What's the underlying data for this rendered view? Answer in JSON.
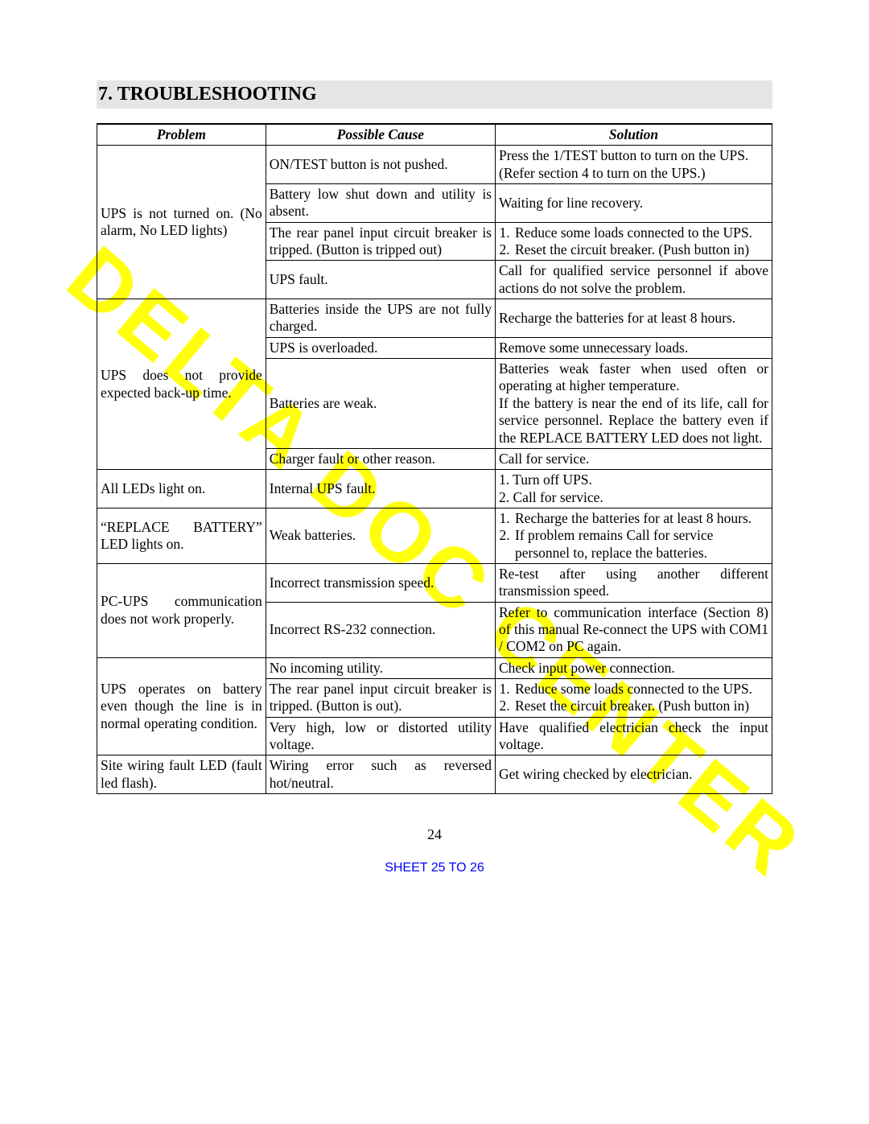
{
  "watermark": "DELTA DOC CENTER",
  "heading": "7. TROUBLESHOOTING",
  "columns": {
    "problem": "Problem",
    "cause": "Possible Cause",
    "solution": "Solution"
  },
  "rows": {
    "r1": {
      "problem": "UPS is not turned on. (No alarm, No LED lights)",
      "c1": "ON/TEST button is not pushed.",
      "s1": "Press the 1/TEST button to turn on the UPS.\n(Refer section 4 to turn on the UPS.)",
      "c2": "Battery low shut down and utility is absent.",
      "s2": "Waiting for line recovery.",
      "c3": "The rear panel input circuit breaker is tripped. (Button is tripped out)",
      "s3a": "Reduce some loads connected to the UPS.",
      "s3b": "Reset the circuit breaker. (Push button in)",
      "c4": "UPS fault.",
      "s4": "Call for qualified service personnel if above actions do not solve the problem."
    },
    "r2": {
      "problem": "UPS does not provide expected back-up time.",
      "c1": "Batteries inside the UPS are not fully charged.",
      "s1": "Recharge the batteries for at least 8 hours.",
      "c2": "UPS is overloaded.",
      "s2": "Remove some unnecessary loads.",
      "c3": "Batteries are weak.",
      "s3": "Batteries weak faster when used often or operating at higher temperature.\nIf the battery is near the end of its life, call for service personnel. Replace the battery even if the REPLACE BATTERY LED does not light.",
      "c4": "Charger fault or other reason.",
      "s4": "Call for service."
    },
    "r3": {
      "problem": "All LEDs light on.",
      "c1": "Internal UPS fault.",
      "s1": "1. Turn off UPS.\n2. Call for service."
    },
    "r4": {
      "problem": "“REPLACE BATTERY” LED lights on.",
      "c1": "Weak batteries.",
      "s1a": "Recharge the batteries for at least 8 hours.",
      "s1b": "If problem remains Call for service personnel to, replace the batteries."
    },
    "r5": {
      "problem": "PC-UPS communication does not work properly.",
      "c1": "Incorrect transmission speed.",
      "s1": "Re-test after using another different transmission speed.",
      "c2": "Incorrect RS-232 connection.",
      "s2": "Refer to communication interface (Section 8) of this manual Re-connect the UPS with COM1 / COM2 on PC again."
    },
    "r6": {
      "problem": "UPS operates on battery even though the line is in normal operating condition.",
      "c1": "No incoming utility.",
      "s1": "Check input power connection.",
      "c2": "The rear panel input circuit breaker is tripped. (Button is out).",
      "s2a": "Reduce some loads connected to the UPS.",
      "s2b": "Reset the circuit breaker. (Push button in)",
      "c3": "Very high, low or distorted utility voltage.",
      "s3": "Have qualified electrician check the input voltage."
    },
    "r7": {
      "problem": "Site wiring fault LED (fault led flash).",
      "c1": "Wiring error such as reversed hot/neutral.",
      "s1": "Get wiring checked by electrician."
    }
  },
  "pagenum": "24",
  "sheetlink": "SHEET 25 TO 26",
  "colors": {
    "heading_bg": "#e5e5e5",
    "watermark": "#ffff00",
    "link": "#0000ff",
    "text": "#000000",
    "border": "#000000"
  }
}
